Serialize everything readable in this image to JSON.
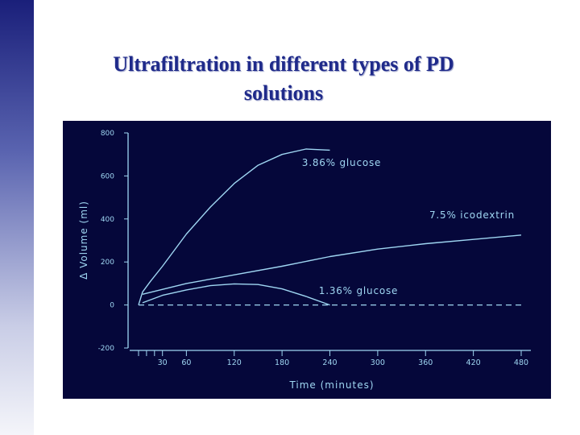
{
  "slide": {
    "title_line1": "Ultrafiltration in different types of PD",
    "title_line2": "solutions"
  },
  "colors": {
    "panel": "#05073a",
    "curve": "#9fd6f2",
    "title": "#1f2a8a"
  },
  "chart_data": {
    "type": "line",
    "title": "",
    "xlabel": "Time (minutes)",
    "ylabel": "Δ Volume (ml)",
    "xlim": [
      0,
      480
    ],
    "ylim": [
      -200,
      800
    ],
    "xticks": [
      30,
      60,
      120,
      180,
      240,
      300,
      360,
      420,
      480
    ],
    "xminor_ticks": [
      0,
      10,
      20
    ],
    "yticks": [
      800,
      600,
      400,
      200,
      0,
      -200
    ],
    "grid": false,
    "series": [
      {
        "name": "3.86% glucose",
        "x": [
          0,
          5,
          15,
          30,
          60,
          90,
          120,
          150,
          180,
          210,
          240
        ],
        "y": [
          0,
          60,
          110,
          180,
          330,
          455,
          565,
          650,
          700,
          725,
          720
        ]
      },
      {
        "name": "7.5% icodextrin",
        "x": [
          5,
          60,
          120,
          180,
          240,
          300,
          360,
          420,
          480
        ],
        "y": [
          50,
          100,
          140,
          180,
          225,
          260,
          285,
          305,
          325
        ]
      },
      {
        "name": "1.36% glucose",
        "x": [
          5,
          30,
          60,
          90,
          120,
          150,
          180,
          210,
          240
        ],
        "y": [
          10,
          45,
          70,
          90,
          98,
          95,
          75,
          40,
          0
        ]
      }
    ],
    "reference_line": {
      "y": 0,
      "style": "dashed",
      "x": [
        0,
        480
      ]
    }
  }
}
